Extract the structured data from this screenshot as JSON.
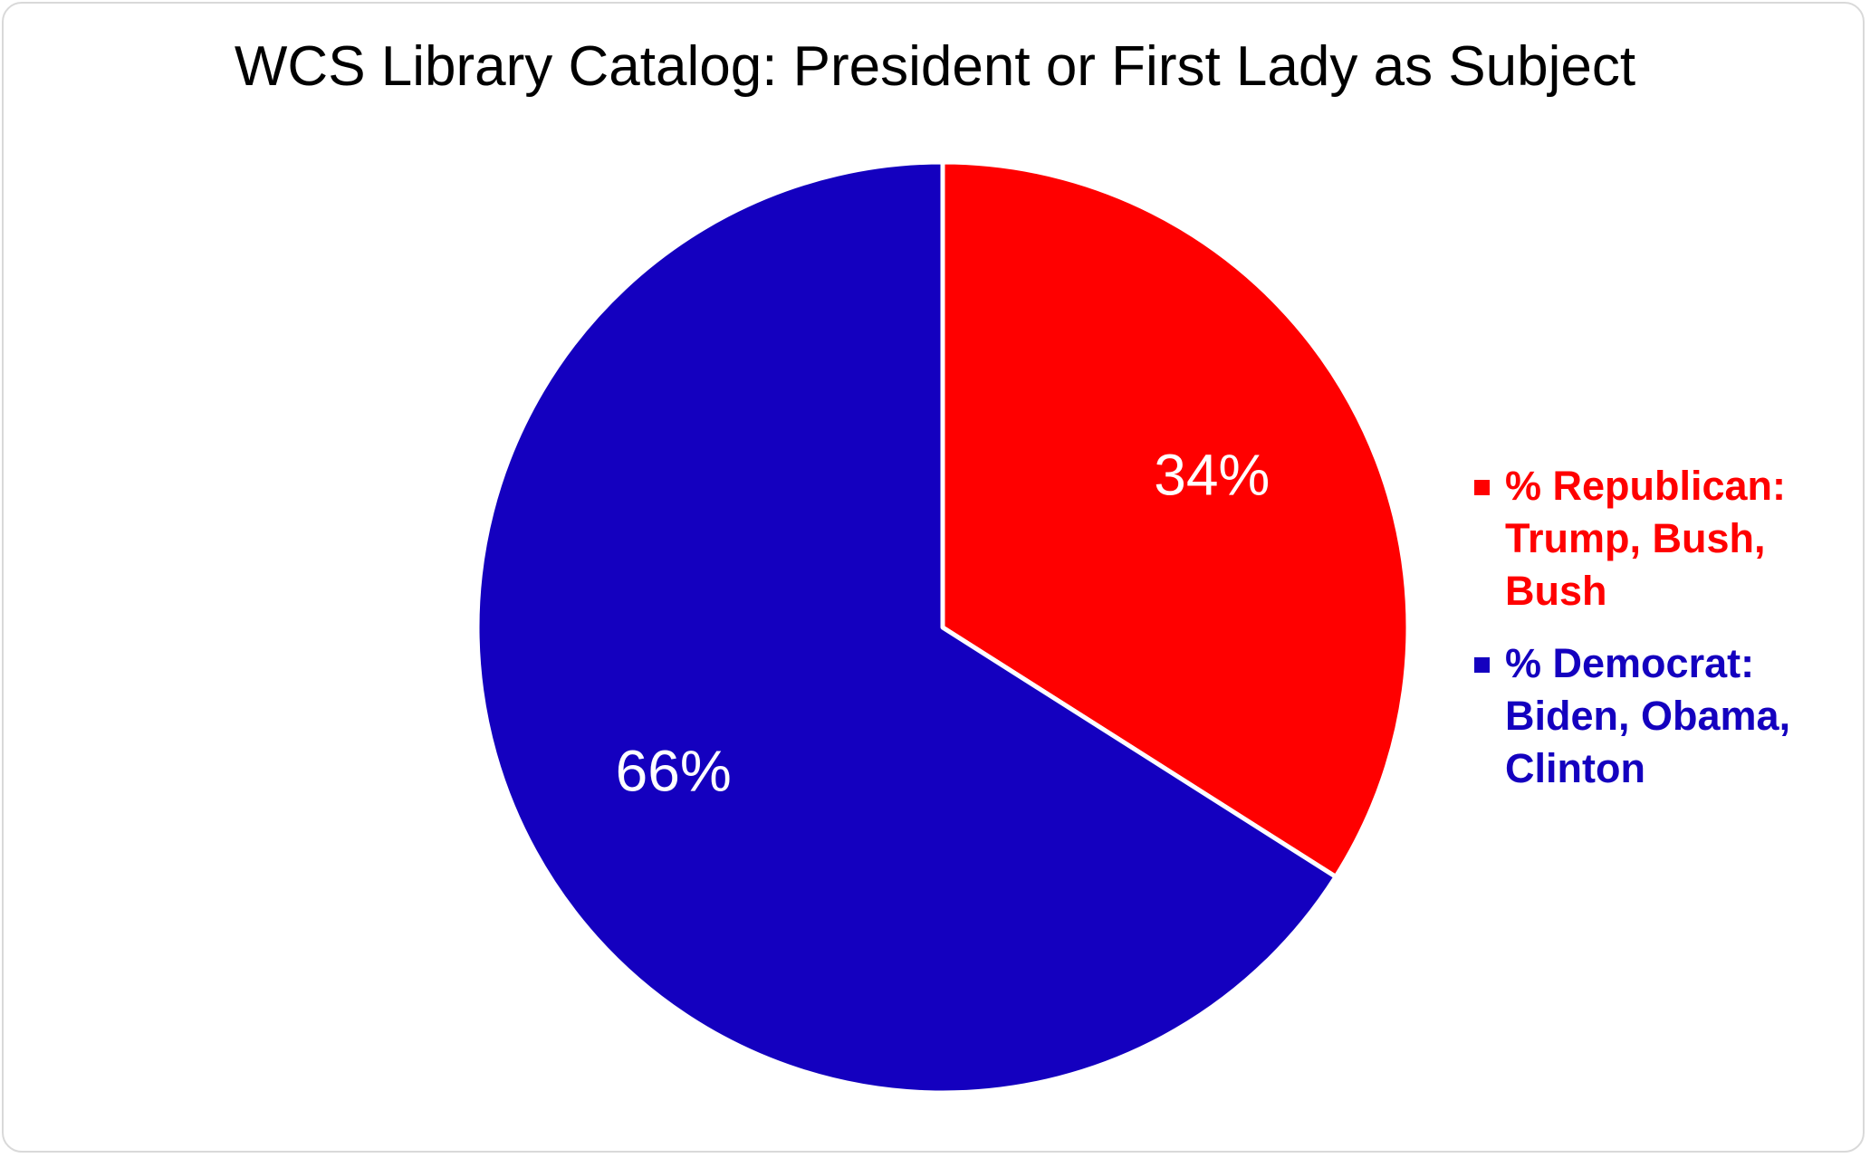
{
  "chart_data": {
    "type": "pie",
    "title": "WCS Library Catalog: President or First Lady as Subject",
    "slices": [
      {
        "name": "% Republican: Trump, Bush, Bush",
        "name_lines": [
          "% Republican:",
          "Trump, Bush,",
          "Bush"
        ],
        "value": 34,
        "label": "34%",
        "color": "#ff0000"
      },
      {
        "name": "% Democrat: Biden, Obama, Clinton",
        "name_lines": [
          "% Democrat:",
          "Biden, Obama,",
          "Clinton"
        ],
        "value": 66,
        "label": "66%",
        "color": "#1400bf"
      }
    ],
    "start_angle": "12 o'clock",
    "direction": "clockwise",
    "legend_position": "right"
  }
}
